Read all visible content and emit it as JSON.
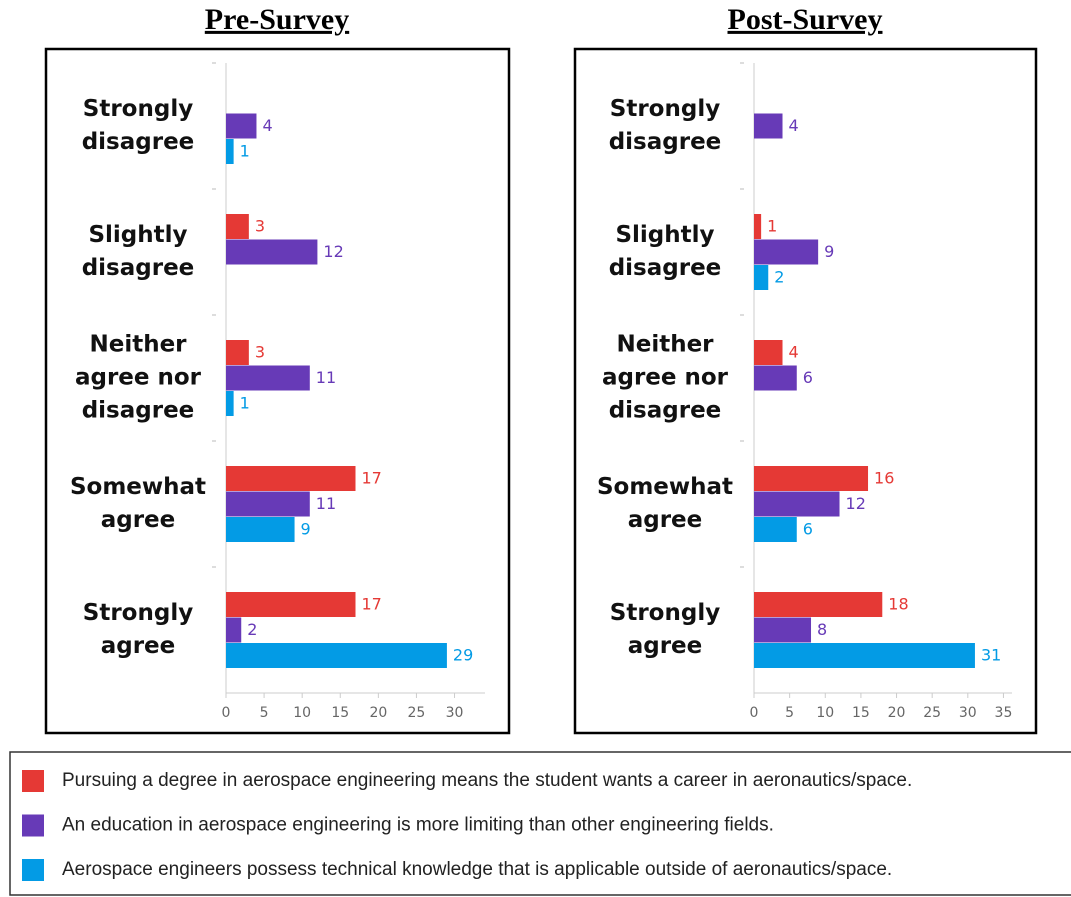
{
  "chart_data": [
    {
      "type": "bar",
      "title": "Pre-Survey",
      "categories": [
        "Strongly disagree",
        "Slightly disagree",
        "Neither agree nor disagree",
        "Somewhat agree",
        "Strongly agree"
      ],
      "series": [
        {
          "name": "Pursuing a degree in aerospace engineering means the student wants a career in aeronautics/space.",
          "color": "#e53935",
          "values": [
            null,
            3,
            3,
            17,
            17
          ]
        },
        {
          "name": "An education in aerospace engineering is more limiting than other engineering fields.",
          "color": "#673ab7",
          "values": [
            4,
            12,
            11,
            11,
            2
          ]
        },
        {
          "name": "Aerospace engineers possess technical knowledge that is applicable outside of aeronautics/space.",
          "color": "#039be5",
          "values": [
            1,
            null,
            1,
            9,
            29
          ]
        }
      ],
      "xlim": [
        0,
        34
      ],
      "xticks": [
        0,
        5,
        10,
        15,
        20,
        25,
        30
      ]
    },
    {
      "type": "bar",
      "title": "Post-Survey",
      "categories": [
        "Strongly disagree",
        "Slightly disagree",
        "Neither agree nor disagree",
        "Somewhat agree",
        "Strongly agree"
      ],
      "series": [
        {
          "values": [
            null,
            1,
            4,
            16,
            18
          ]
        },
        {
          "values": [
            4,
            9,
            6,
            12,
            8
          ]
        },
        {
          "values": [
            null,
            2,
            null,
            6,
            31
          ]
        }
      ],
      "xlim": [
        0,
        36.2
      ],
      "xticks": [
        0,
        5,
        10,
        15,
        20,
        25,
        30,
        35
      ]
    }
  ]
}
